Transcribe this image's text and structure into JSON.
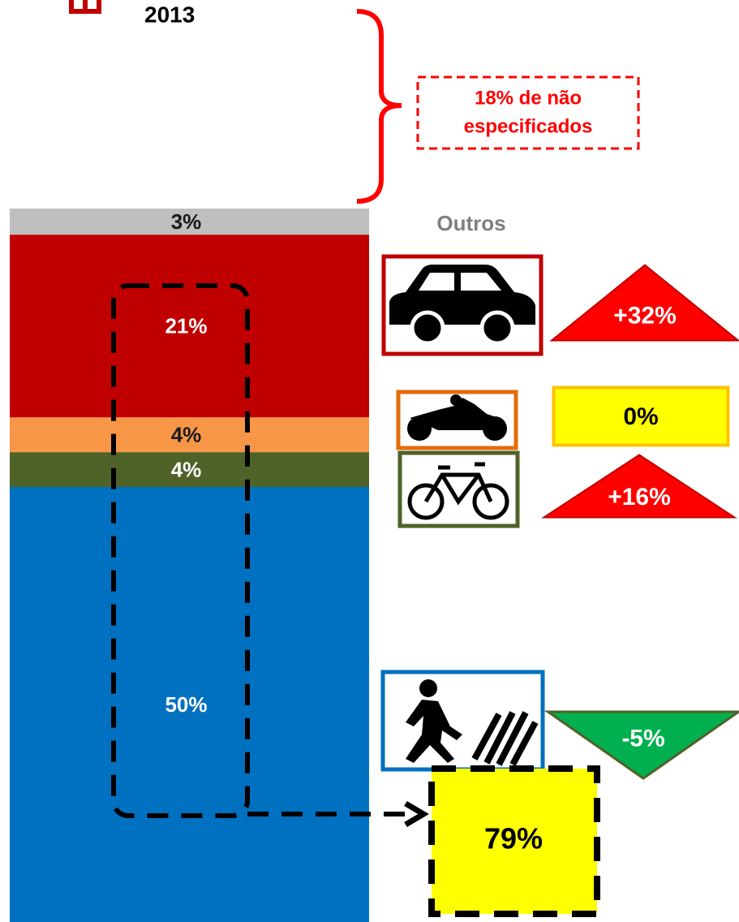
{
  "chart_data": {
    "type": "stacked_bar",
    "title": "2013",
    "values": [
      50,
      4,
      4,
      21,
      3
    ],
    "value_labels": [
      "50%",
      "4%",
      "4%",
      "21%",
      "3%"
    ],
    "colors": [
      "#0070c0",
      "#4f6228",
      "#f79646",
      "#c00000",
      "#bfbfbf"
    ],
    "label_colors": [
      "#ffffff",
      "#ffffff",
      "#1a1a1a",
      "#ffffff",
      "#1a1a1a"
    ],
    "ylim": [
      0,
      100
    ],
    "other_label": "Outros",
    "unspecified_note": [
      "18% de não",
      "especificados"
    ],
    "changes": {
      "values": [
        32,
        0,
        16,
        -5
      ],
      "value_labels": [
        "+32%",
        "0%",
        "+16%",
        "-5%"
      ]
    },
    "total": {
      "value": 79,
      "label": "79%"
    }
  }
}
